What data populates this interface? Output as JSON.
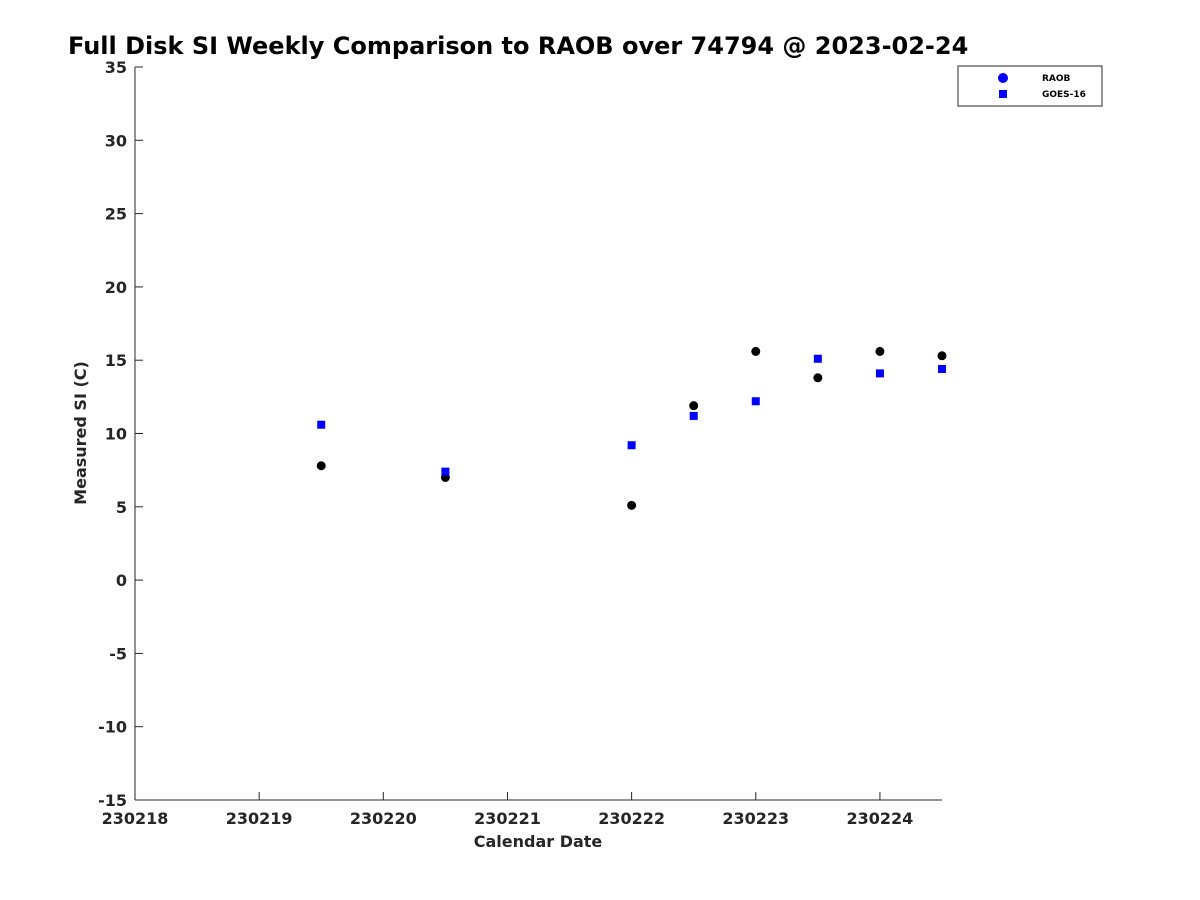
{
  "chart_data": {
    "type": "scatter",
    "title": "Full Disk SI Weekly Comparison to RAOB over 74794 @ 2023-02-24",
    "xlabel": "Calendar Date",
    "ylabel": "Measured SI (C)",
    "x_ticks": [
      {
        "value": 0,
        "label": "230218"
      },
      {
        "value": 1,
        "label": "230219"
      },
      {
        "value": 2,
        "label": "230220"
      },
      {
        "value": 3,
        "label": "230221"
      },
      {
        "value": 4,
        "label": "230222"
      },
      {
        "value": 5,
        "label": "230223"
      },
      {
        "value": 6,
        "label": "230224"
      }
    ],
    "xlim": [
      0,
      6.5
    ],
    "ylim": [
      -15,
      35
    ],
    "y_ticks": [
      35,
      30,
      25,
      20,
      15,
      10,
      5,
      0,
      -5,
      -10,
      -15
    ],
    "grid": false,
    "legend_position": "top-right",
    "series": [
      {
        "name": "RAOB",
        "marker": "circle",
        "legend_color": "#0000ff",
        "point_color": "#000000",
        "points": [
          {
            "x": 1.5,
            "y": 7.8
          },
          {
            "x": 2.5,
            "y": 7.0
          },
          {
            "x": 4.0,
            "y": 5.1
          },
          {
            "x": 4.5,
            "y": 11.9
          },
          {
            "x": 5.0,
            "y": 15.6
          },
          {
            "x": 5.5,
            "y": 13.8
          },
          {
            "x": 6.0,
            "y": 15.6
          },
          {
            "x": 6.5,
            "y": 15.3
          }
        ]
      },
      {
        "name": "GOES-16",
        "marker": "square",
        "legend_color": "#0000ff",
        "point_color": "#0000ff",
        "points": [
          {
            "x": 1.5,
            "y": 10.6
          },
          {
            "x": 2.5,
            "y": 7.4
          },
          {
            "x": 4.0,
            "y": 9.2
          },
          {
            "x": 4.5,
            "y": 11.2
          },
          {
            "x": 5.0,
            "y": 12.2
          },
          {
            "x": 5.5,
            "y": 15.1
          },
          {
            "x": 6.0,
            "y": 14.1
          },
          {
            "x": 6.5,
            "y": 14.4
          }
        ]
      }
    ]
  }
}
